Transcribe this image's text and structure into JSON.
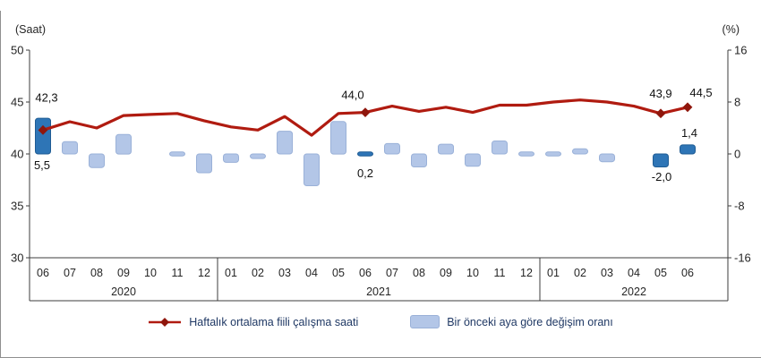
{
  "chart_data": {
    "type": "combo",
    "title": "",
    "left_axis": {
      "unit": "(Saat)",
      "range": [
        30,
        50
      ],
      "ticks": [
        50,
        45,
        40,
        35,
        30
      ]
    },
    "right_axis": {
      "unit": "(%)",
      "range": [
        -16,
        16
      ],
      "ticks": [
        16,
        8,
        0,
        -8,
        -16
      ]
    },
    "months": [
      "06",
      "07",
      "08",
      "09",
      "10",
      "11",
      "12",
      "01",
      "02",
      "03",
      "04",
      "05",
      "06",
      "07",
      "08",
      "09",
      "10",
      "11",
      "12",
      "01",
      "02",
      "03",
      "04",
      "05",
      "06"
    ],
    "year_groups": [
      {
        "label": "2020",
        "months": 7
      },
      {
        "label": "2021",
        "months": 12
      },
      {
        "label": "2022",
        "months": 6
      }
    ],
    "trailing_empty_slots": 1,
    "legend_position": "bottom",
    "grid": false,
    "series": [
      {
        "name": "Haftalık ortalama fiili çalışma saati",
        "type": "line",
        "axis": "left",
        "color": "#b01b10",
        "marker_color": "#8f160c",
        "values": [
          42.3,
          43.1,
          42.5,
          43.7,
          43.8,
          43.9,
          43.2,
          42.6,
          42.3,
          43.6,
          41.8,
          43.9,
          44.0,
          44.6,
          44.1,
          44.5,
          44.0,
          44.7,
          44.7,
          45.0,
          45.2,
          45.0,
          44.6,
          43.9,
          44.5
        ],
        "labels": [
          {
            "index": 0,
            "text": "42,3",
            "dx": 4,
            "dy": -32
          },
          {
            "index": 12,
            "text": "44,0",
            "dx": -14,
            "dy": -15
          },
          {
            "index": 23,
            "text": "43,9",
            "dx": 0,
            "dy": -18
          },
          {
            "index": 24,
            "text": "44,5",
            "dx": 15,
            "dy": -12
          }
        ]
      },
      {
        "name": "Bir önceki aya göre değişim oranı",
        "type": "bar",
        "axis": "right",
        "color": "#b3c6e7",
        "border_color": "#9ab1d8",
        "highlight_color": "#2e75b6",
        "highlight_border": "#1f5c94",
        "highlight_indices": [
          0,
          12,
          23,
          24
        ],
        "values": [
          5.5,
          1.9,
          -2.1,
          3.0,
          0.0,
          0.2,
          -2.9,
          -1.3,
          -0.7,
          3.5,
          -4.9,
          5.0,
          0.2,
          1.6,
          -2.0,
          1.5,
          -1.9,
          2.0,
          0.1,
          0.1,
          0.8,
          -1.2,
          0.0,
          -2.0,
          1.4
        ],
        "labels": [
          {
            "index": 0,
            "text": "5,5",
            "dx": -1,
            "dy": 17
          },
          {
            "index": 12,
            "text": "0,2",
            "dx": 0,
            "dy": 26
          },
          {
            "index": 23,
            "text": "-2,0",
            "dx": 1,
            "dy": 30
          },
          {
            "index": 24,
            "text": "1,4",
            "dx": 2,
            "dy": -19
          }
        ]
      }
    ]
  }
}
